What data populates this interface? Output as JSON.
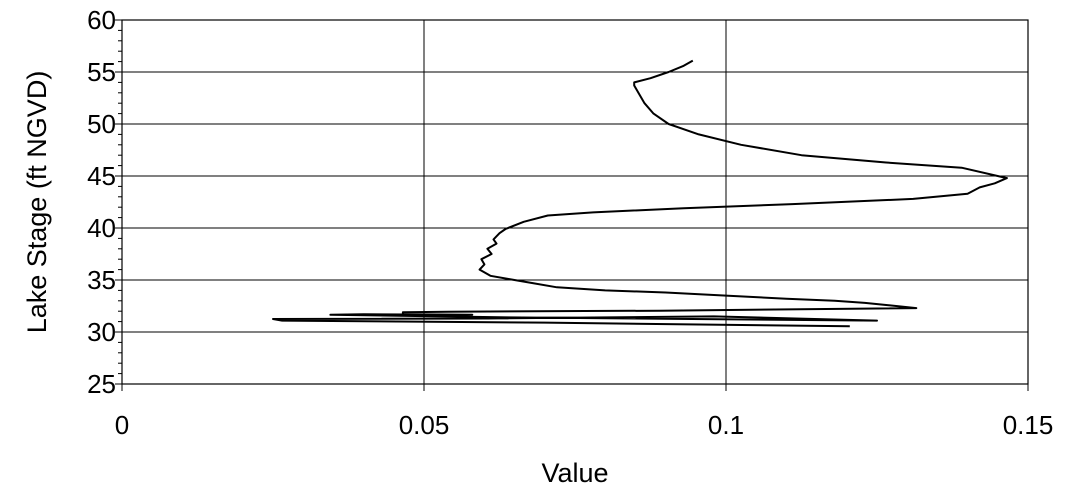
{
  "chart_data": {
    "type": "line",
    "title": "",
    "xlabel": "Value",
    "ylabel": "Lake Stage (ft NGVD)",
    "xlim": [
      0,
      0.15
    ],
    "ylim": [
      25,
      60
    ],
    "x_ticks": [
      0,
      0.05,
      0.1,
      0.15
    ],
    "x_tick_labels": [
      "0",
      "0.05",
      "0.1",
      "0.15"
    ],
    "y_ticks": [
      25,
      30,
      35,
      40,
      45,
      50,
      55,
      60
    ],
    "y_tick_labels": [
      "25",
      "30",
      "35",
      "40",
      "45",
      "50",
      "55",
      "60"
    ],
    "grid": true,
    "legend": "none",
    "series": [
      {
        "color": "#000000",
        "points": [
          [
            0.0945,
            56.1
          ],
          [
            0.093,
            55.6
          ],
          [
            0.0905,
            55.0
          ],
          [
            0.0875,
            54.4
          ],
          [
            0.0848,
            54.0
          ],
          [
            0.0848,
            53.7
          ],
          [
            0.0855,
            53.0
          ],
          [
            0.0865,
            52.0
          ],
          [
            0.088,
            51.0
          ],
          [
            0.0905,
            50.0
          ],
          [
            0.0955,
            49.0
          ],
          [
            0.1025,
            48.0
          ],
          [
            0.1125,
            47.0
          ],
          [
            0.1265,
            46.3
          ],
          [
            0.139,
            45.8
          ],
          [
            0.1465,
            44.8
          ],
          [
            0.1445,
            44.3
          ],
          [
            0.142,
            43.9
          ],
          [
            0.14,
            43.3
          ],
          [
            0.131,
            42.8
          ],
          [
            0.111,
            42.3
          ],
          [
            0.093,
            41.9
          ],
          [
            0.078,
            41.5
          ],
          [
            0.0705,
            41.2
          ],
          [
            0.0665,
            40.6
          ],
          [
            0.0635,
            39.9
          ],
          [
            0.0625,
            39.5
          ],
          [
            0.0615,
            38.9
          ],
          [
            0.062,
            38.5
          ],
          [
            0.0605,
            38.0
          ],
          [
            0.0612,
            37.5
          ],
          [
            0.0595,
            37.0
          ],
          [
            0.06,
            36.5
          ],
          [
            0.0592,
            36.0
          ],
          [
            0.061,
            35.4
          ],
          [
            0.064,
            35.1
          ],
          [
            0.068,
            34.7
          ],
          [
            0.072,
            34.3
          ],
          [
            0.08,
            34.0
          ],
          [
            0.09,
            33.8
          ],
          [
            0.1,
            33.5
          ],
          [
            0.11,
            33.2
          ],
          [
            0.118,
            33.0
          ],
          [
            0.123,
            32.8
          ],
          [
            0.1265,
            32.6
          ],
          [
            0.1315,
            32.3
          ],
          [
            0.089,
            32.05
          ],
          [
            0.054,
            31.95
          ],
          [
            0.0465,
            31.9
          ],
          [
            0.0465,
            31.7
          ],
          [
            0.058,
            31.65
          ],
          [
            0.04,
            31.7
          ],
          [
            0.0345,
            31.65
          ],
          [
            0.064,
            31.4
          ],
          [
            0.125,
            31.1
          ],
          [
            0.098,
            31.5
          ],
          [
            0.0605,
            31.3
          ],
          [
            0.025,
            31.25
          ],
          [
            0.0265,
            31.1
          ],
          [
            0.07,
            30.9
          ],
          [
            0.1205,
            30.55
          ]
        ]
      }
    ]
  }
}
